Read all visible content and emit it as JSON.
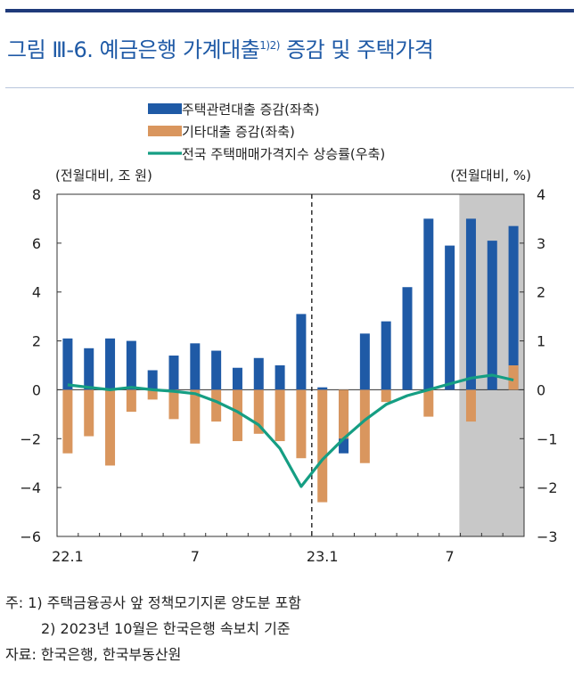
{
  "figure": {
    "title_main": "그림 Ⅲ-6. 예금은행 가계대출",
    "title_sup": "1)2)",
    "title_tail": " 증감 및 주택가격"
  },
  "chart_data": {
    "type": "bar",
    "categories": [
      "22.1",
      "22.2",
      "22.3",
      "22.4",
      "22.5",
      "22.6",
      "22.7",
      "22.8",
      "22.9",
      "22.10",
      "22.11",
      "22.12",
      "23.1",
      "23.2",
      "23.3",
      "23.4",
      "23.5",
      "23.6",
      "23.7",
      "23.8",
      "23.9",
      "23.10"
    ],
    "tick_labels": [
      {
        "index": 0,
        "label": "22.1"
      },
      {
        "index": 6,
        "label": "7"
      },
      {
        "index": 12,
        "label": "23.1"
      },
      {
        "index": 18,
        "label": "7"
      }
    ],
    "series": [
      {
        "name": "주택관련대출 증감(좌축)",
        "kind": "bar",
        "axis": "left",
        "color": "#1f5aa6",
        "values": [
          2.1,
          1.7,
          2.1,
          2.0,
          0.8,
          1.4,
          1.9,
          1.6,
          0.9,
          1.3,
          1.0,
          3.1,
          0.1,
          -2.6,
          2.3,
          2.8,
          4.2,
          7.0,
          5.9,
          7.0,
          6.1,
          6.7
        ]
      },
      {
        "name": "기타대출 증감(좌축)",
        "kind": "bar",
        "axis": "left",
        "color": "#d9965e",
        "values": [
          -2.6,
          -1.9,
          -3.1,
          -0.9,
          -0.4,
          -1.2,
          -2.2,
          -1.3,
          -2.1,
          -1.8,
          -2.1,
          -2.8,
          -4.6,
          -2.0,
          -3.0,
          -0.5,
          0.0,
          -1.1,
          0.0,
          -1.3,
          0.0,
          1.0
        ]
      },
      {
        "name": "전국 주택매매가격지수 상승률(우축)",
        "kind": "line",
        "axis": "right",
        "color": "#159e83",
        "values": [
          0.1,
          0.05,
          0.0,
          0.05,
          0.0,
          -0.03,
          -0.08,
          -0.24,
          -0.45,
          -0.72,
          -1.2,
          -1.98,
          -1.43,
          -1.0,
          -0.62,
          -0.3,
          -0.12,
          0.0,
          0.12,
          0.24,
          0.3,
          0.2
        ]
      }
    ],
    "left_axis": {
      "label": "(전월대비,  조  원)",
      "ylim": [
        -6,
        8
      ],
      "ticks": [
        "−6",
        "−4",
        "−2",
        "0",
        "2",
        "4",
        "6",
        "8"
      ]
    },
    "right_axis": {
      "label": "(전월대비,  %)",
      "ylim": [
        -3,
        4
      ],
      "ticks": [
        "−3",
        "−2",
        "−1",
        "0",
        "1",
        "2",
        "3",
        "4"
      ]
    },
    "vline_after_category": "22.12",
    "shaded_from_category": "23.8",
    "legend": {
      "placement": "top-center"
    }
  },
  "notes": {
    "line1": "주: 1) 주택금융공사 앞 정책모기지론 양도분 포함",
    "line2": "2) 2023년 10월은 한국은행 속보치 기준",
    "line3": "자료: 한국은행, 한국부동산원"
  }
}
